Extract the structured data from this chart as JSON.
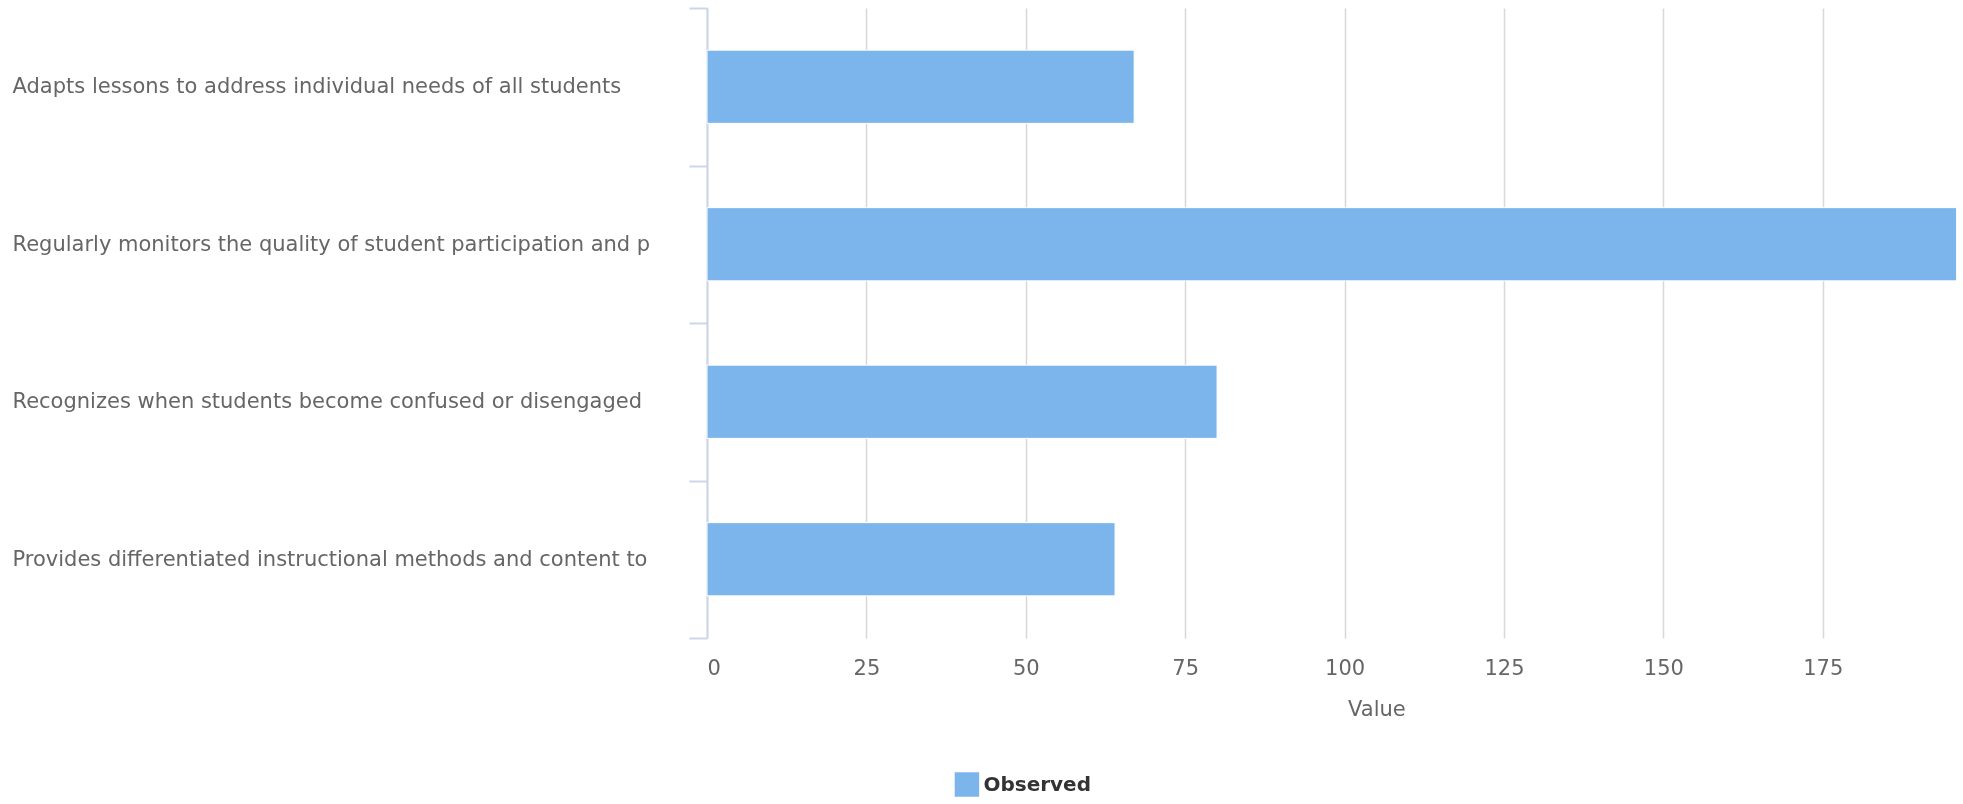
{
  "chart_data": {
    "type": "bar",
    "orientation": "horizontal",
    "categories": [
      "Adapts lessons to address individual needs of all students",
      "Regularly monitors the quality of student participation and p",
      "Recognizes when students become confused or disengaged",
      "Provides differentiated instructional methods and content to"
    ],
    "series": [
      {
        "name": "Observed",
        "color": "#7cb5ec",
        "values": [
          67,
          196,
          80,
          64
        ]
      }
    ],
    "xlabel": "Value",
    "xlim": [
      0,
      197
    ],
    "xticks": [
      0,
      25,
      50,
      75,
      100,
      125,
      150,
      175
    ],
    "grid": "x",
    "legend": "bottom"
  }
}
